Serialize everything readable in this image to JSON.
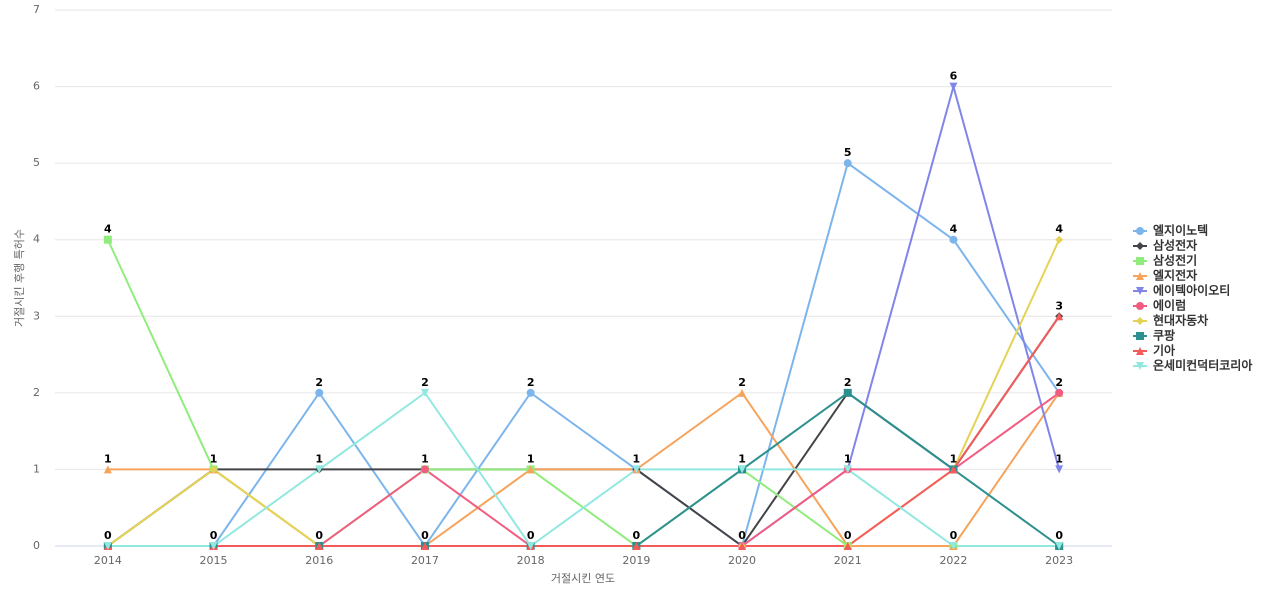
{
  "chart_data": {
    "type": "line",
    "x_label": "거절시킨 연도",
    "y_label": "거절시킨 후행 특허수",
    "categories": [
      "2014",
      "2015",
      "2016",
      "2017",
      "2018",
      "2019",
      "2020",
      "2021",
      "2022",
      "2023"
    ],
    "ylim": [
      0,
      7
    ],
    "yticks": [
      0,
      1,
      2,
      3,
      4,
      5,
      6,
      7
    ],
    "grid": true,
    "legend": "right",
    "series": [
      {
        "name": "엘지이노텍",
        "color": "#7cb5ec",
        "marker": "circle",
        "values": [
          0,
          0,
          2,
          0,
          2,
          1,
          0,
          5,
          4,
          2
        ]
      },
      {
        "name": "삼성전자",
        "color": "#434348",
        "marker": "diamond",
        "values": [
          0,
          1,
          1,
          1,
          1,
          1,
          0,
          2,
          1,
          3
        ]
      },
      {
        "name": "삼성전기",
        "color": "#90ed7d",
        "marker": "square",
        "values": [
          4,
          1,
          0,
          1,
          1,
          0,
          1,
          0,
          0,
          0
        ]
      },
      {
        "name": "엘지전자",
        "color": "#f7a35c",
        "marker": "triangle",
        "values": [
          1,
          1,
          0,
          0,
          1,
          1,
          2,
          0,
          0,
          2
        ]
      },
      {
        "name": "에이텍아이오티",
        "color": "#8085e9",
        "marker": "triangle-down",
        "values": [
          0,
          0,
          0,
          0,
          0,
          0,
          0,
          1,
          6,
          1
        ]
      },
      {
        "name": "에이럼",
        "color": "#f15c80",
        "marker": "circle",
        "values": [
          0,
          0,
          0,
          1,
          0,
          0,
          0,
          1,
          1,
          2
        ]
      },
      {
        "name": "현대자동차",
        "color": "#e4d354",
        "marker": "diamond",
        "values": [
          0,
          1,
          0,
          0,
          0,
          0,
          0,
          0,
          1,
          4
        ]
      },
      {
        "name": "쿠팡",
        "color": "#2b908f",
        "marker": "square",
        "values": [
          0,
          0,
          0,
          0,
          0,
          0,
          1,
          2,
          1,
          0
        ]
      },
      {
        "name": "기아",
        "color": "#f45b5b",
        "marker": "triangle",
        "values": [
          0,
          0,
          0,
          0,
          0,
          0,
          0,
          0,
          1,
          3
        ]
      },
      {
        "name": "온세미컨덕터코리아",
        "color": "#91e8e1",
        "marker": "triangle-down",
        "values": [
          0,
          0,
          1,
          2,
          0,
          1,
          1,
          1,
          0,
          0
        ]
      }
    ]
  }
}
